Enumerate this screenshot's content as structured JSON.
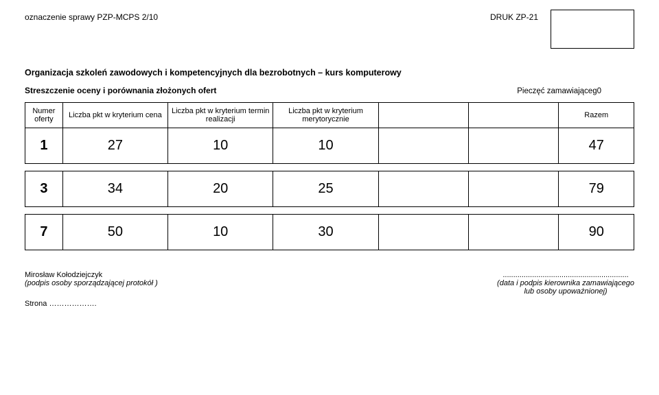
{
  "header": {
    "case_label": "oznaczenie sprawy  PZP-MCPS 2/10",
    "form_id": "DRUK ZP-21"
  },
  "stamp_label": "Pieczęć zamawiająceg0",
  "title": "Organizacja szkoleń zawodowych i kompetencyjnych dla bezrobotnych – kurs komputerowy",
  "subtitle": "Streszczenie oceny i porównania złożonych ofert",
  "table": {
    "columns": {
      "c0": "Numer oferty",
      "c1": "Liczba pkt w kryterium cena",
      "c2": "Liczba pkt w kryterium termin realizacji",
      "c3": "Liczba pkt w kryterium merytorycznie",
      "c4": "",
      "c5": "",
      "c6": "Razem"
    },
    "rows": [
      {
        "num": "1",
        "v1": "27",
        "v2": "10",
        "v3": "10",
        "v4": "",
        "v5": "",
        "sum": "47"
      },
      {
        "num": "3",
        "v1": "34",
        "v2": "20",
        "v3": "25",
        "v4": "",
        "v5": "",
        "sum": "79"
      },
      {
        "num": "7",
        "v1": "50",
        "v2": "10",
        "v3": "30",
        "v4": "",
        "v5": "",
        "sum": "90"
      }
    ]
  },
  "footer": {
    "signer": "Mirosław Kołodziejczyk",
    "sign_note": "(podpis osoby sporządzającej protokół )",
    "page_label": "Strona ……………….",
    "right_dots": "............................................................",
    "right_note1": "(data i podpis kierownika zamawiającego",
    "right_note2": "lub osoby upoważnionej)"
  }
}
